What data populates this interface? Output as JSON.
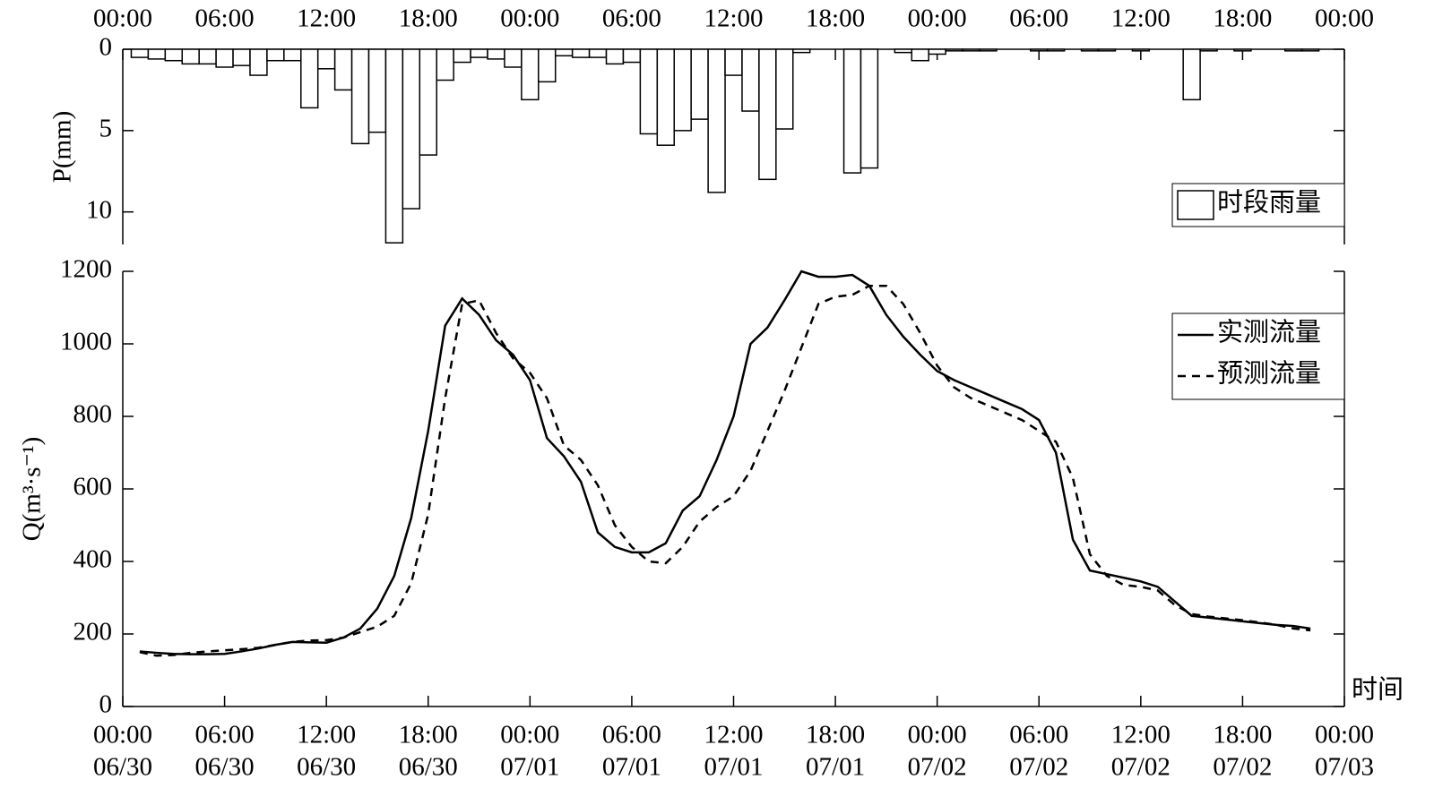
{
  "chart_data": [
    {
      "type": "bar",
      "ylabel": "P(mm)",
      "inverted": true,
      "x": [
        1,
        2,
        3,
        4,
        5,
        6,
        7,
        8,
        9,
        10,
        11,
        12,
        13,
        14,
        15,
        16,
        17,
        18,
        19,
        20,
        21,
        22,
        23,
        24,
        25,
        26,
        27,
        28,
        29,
        30,
        31,
        32,
        33,
        34,
        35,
        36,
        37,
        38,
        39,
        40,
        41,
        42,
        43,
        44,
        45,
        46,
        47,
        48,
        49,
        50,
        51,
        52,
        53,
        54,
        55,
        56,
        57,
        58,
        59,
        60,
        61,
        62,
        63,
        64,
        65,
        66,
        67,
        68,
        69,
        70
      ],
      "series": [
        {
          "name": "时段雨量",
          "color": "#ffffff",
          "values": [
            0.5,
            0.6,
            0.7,
            0.9,
            0.9,
            1.1,
            1.0,
            1.6,
            0.7,
            0.7,
            3.6,
            1.2,
            2.5,
            5.8,
            5.1,
            11.9,
            9.8,
            6.5,
            1.9,
            0.8,
            0.5,
            0.6,
            1.1,
            3.1,
            2.0,
            0.4,
            0.5,
            0.5,
            0.9,
            0.8,
            5.2,
            5.9,
            5.0,
            4.3,
            8.8,
            1.6,
            3.8,
            8.0,
            4.9,
            0.2,
            0,
            0,
            7.6,
            7.3,
            0,
            0.2,
            0.7,
            0.3,
            0.1,
            0.1,
            0.1,
            0,
            0,
            0.1,
            0.1,
            0,
            0.1,
            0.1,
            0,
            0.1,
            0,
            0,
            3.1,
            0.1,
            0,
            0.1,
            0,
            0,
            0.1,
            0.1
          ]
        }
      ],
      "xlim": [
        0,
        72
      ],
      "xticks": [
        {
          "value": 0,
          "label": "00:00"
        },
        {
          "value": 6,
          "label": "06:00"
        },
        {
          "value": 12,
          "label": "12:00"
        },
        {
          "value": 18,
          "label": "18:00"
        },
        {
          "value": 24,
          "label": "00:00"
        },
        {
          "value": 30,
          "label": "06:00"
        },
        {
          "value": 36,
          "label": "12:00"
        },
        {
          "value": 42,
          "label": "18:00"
        },
        {
          "value": 48,
          "label": "00:00"
        },
        {
          "value": 54,
          "label": "06:00"
        },
        {
          "value": 60,
          "label": "12:00"
        },
        {
          "value": 66,
          "label": "18:00"
        },
        {
          "value": 72,
          "label": "00:00"
        }
      ],
      "ylim": [
        0,
        12
      ],
      "yticks": [
        0,
        5,
        10
      ]
    },
    {
      "type": "line",
      "ylabel": "Q(m³·s⁻¹)",
      "xlabel": "时间",
      "x": [
        1,
        2,
        3,
        4,
        5,
        6,
        7,
        8,
        9,
        10,
        11,
        12,
        13,
        14,
        15,
        16,
        17,
        18,
        19,
        20,
        21,
        22,
        23,
        24,
        25,
        26,
        27,
        28,
        29,
        30,
        31,
        32,
        33,
        34,
        35,
        36,
        37,
        38,
        39,
        40,
        41,
        42,
        43,
        44,
        45,
        46,
        47,
        48,
        49,
        50,
        51,
        52,
        53,
        54,
        55,
        56,
        57,
        58,
        59,
        60,
        61,
        62,
        63,
        64,
        65,
        66,
        67,
        68,
        69,
        70
      ],
      "series": [
        {
          "name": "实测流量",
          "color": "#000000",
          "dash": false,
          "values": [
            152,
            148,
            145,
            144,
            144,
            145,
            152,
            160,
            170,
            178,
            177,
            176,
            190,
            215,
            270,
            360,
            520,
            760,
            1050,
            1125,
            1080,
            1010,
            970,
            900,
            740,
            690,
            620,
            480,
            440,
            425,
            425,
            450,
            540,
            580,
            680,
            800,
            1000,
            1045,
            1120,
            1200,
            1185,
            1185,
            1190,
            1160,
            1080,
            1020,
            970,
            925,
            900,
            880,
            860,
            840,
            820,
            790,
            700,
            460,
            375,
            365,
            355,
            345,
            330,
            290,
            250,
            245,
            240,
            235,
            230,
            225,
            222,
            215
          ]
        },
        {
          "name": "预测流量",
          "color": "#000000",
          "dash": true,
          "values": [
            150,
            140,
            142,
            148,
            152,
            155,
            158,
            162,
            170,
            178,
            182,
            183,
            190,
            205,
            220,
            250,
            340,
            530,
            850,
            1110,
            1120,
            1030,
            960,
            920,
            850,
            720,
            680,
            610,
            500,
            440,
            400,
            395,
            440,
            510,
            550,
            580,
            650,
            760,
            870,
            990,
            1110,
            1130,
            1135,
            1160,
            1160,
            1110,
            1030,
            940,
            880,
            850,
            830,
            810,
            790,
            760,
            730,
            630,
            420,
            360,
            335,
            330,
            320,
            280,
            255,
            248,
            243,
            238,
            232,
            225,
            215,
            210
          ]
        }
      ],
      "xlim": [
        0,
        72
      ],
      "xticks": [
        {
          "value": 0,
          "label": [
            "00:00",
            "06/30"
          ]
        },
        {
          "value": 6,
          "label": [
            "06:00",
            "06/30"
          ]
        },
        {
          "value": 12,
          "label": [
            "12:00",
            "06/30"
          ]
        },
        {
          "value": 18,
          "label": [
            "18:00",
            "06/30"
          ]
        },
        {
          "value": 24,
          "label": [
            "00:00",
            "07/01"
          ]
        },
        {
          "value": 30,
          "label": [
            "06:00",
            "07/01"
          ]
        },
        {
          "value": 36,
          "label": [
            "12:00",
            "07/01"
          ]
        },
        {
          "value": 42,
          "label": [
            "18:00",
            "07/01"
          ]
        },
        {
          "value": 48,
          "label": [
            "00:00",
            "07/02"
          ]
        },
        {
          "value": 54,
          "label": [
            "06:00",
            "07/02"
          ]
        },
        {
          "value": 60,
          "label": [
            "12:00",
            "07/02"
          ]
        },
        {
          "value": 66,
          "label": [
            "18:00",
            "07/02"
          ]
        },
        {
          "value": 72,
          "label": [
            "00:00",
            "07/03"
          ]
        }
      ],
      "ylim": [
        0,
        1200
      ],
      "yticks": [
        0,
        200,
        400,
        600,
        800,
        1000,
        1200
      ]
    }
  ]
}
